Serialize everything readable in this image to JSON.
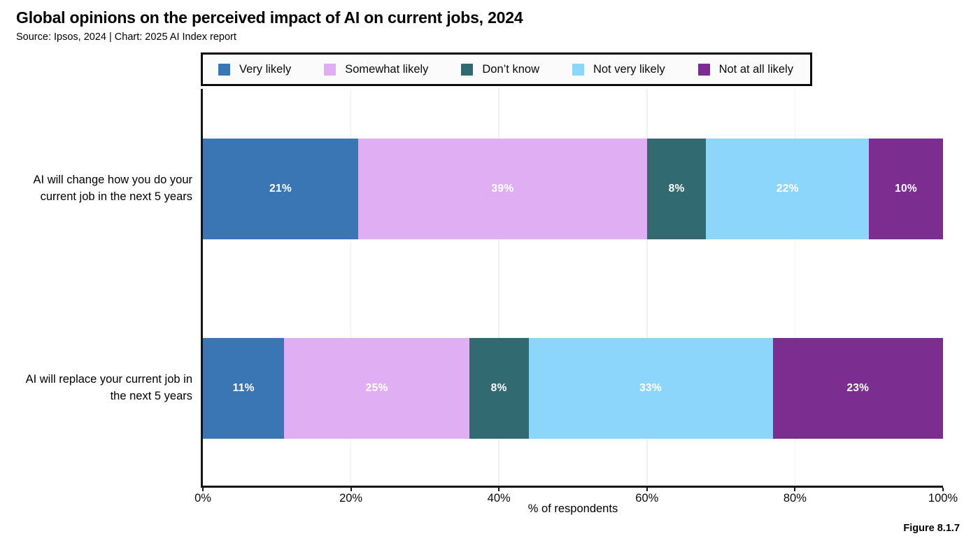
{
  "title": "Global opinions on the perceived impact of AI on current jobs, 2024",
  "subtitle": "Source: Ipsos, 2024 | Chart: 2025 AI Index report",
  "figure_label": "Figure 8.1.7",
  "colors": {
    "axis": "#151515",
    "grid": "#f0f0f0",
    "legend_border": "#0d0d0d",
    "legend_background": "#fbfbfb",
    "bar_value_text": "#ffffff"
  },
  "chart_data": {
    "type": "bar",
    "orientation": "horizontal",
    "stacked": true,
    "title": "Global opinions on the perceived impact of AI on current jobs, 2024",
    "subtitle": "Source: Ipsos, 2024 | Chart: 2025 AI Index report",
    "categories": [
      "AI will change how you do your current job in the next 5 years",
      "AI will replace your current job in the next 5 years"
    ],
    "series": [
      {
        "name": "Very likely",
        "color": "#3A76B4",
        "values": [
          21,
          11
        ]
      },
      {
        "name": "Somewhat likely",
        "color": "#E0AFF3",
        "values": [
          39,
          25
        ]
      },
      {
        "name": "Don’t know",
        "color": "#316A70",
        "values": [
          8,
          8
        ]
      },
      {
        "name": "Not very likely",
        "color": "#8DD6FB",
        "values": [
          22,
          33
        ]
      },
      {
        "name": "Not at all likely",
        "color": "#7B2E90",
        "values": [
          10,
          23
        ]
      }
    ],
    "value_suffix": "%",
    "xlabel": "% of respondents",
    "xlim": [
      0,
      100
    ],
    "xticks": [
      0,
      20,
      40,
      60,
      80,
      100
    ],
    "xtick_labels": [
      "0%",
      "20%",
      "40%",
      "60%",
      "80%",
      "100%"
    ],
    "grid": true,
    "legend_position": "top"
  }
}
